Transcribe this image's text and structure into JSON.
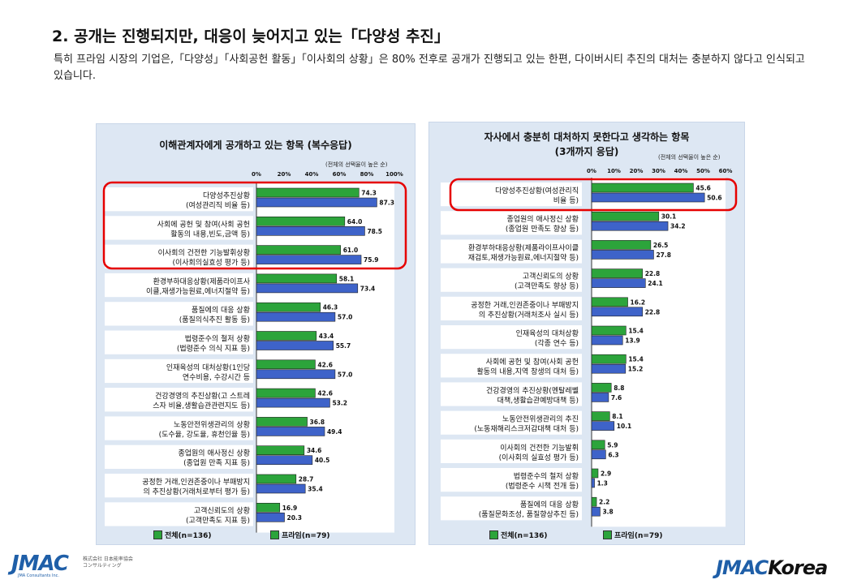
{
  "heading": "2. 공개는 진행되지만, 대응이 늦어지고 있는「다양성 추진」",
  "description": "특히 프라임 시장의 기업은,「다양성」「사회공헌 활동」「이사회의 상황」은 80% 전후로  공개가 진행되고 있는 한편, 다이버시티 추진의 대처는 충분하지 않다고 인식되고 있습니다.",
  "colors": {
    "all_bar": "#2ca43b",
    "prime_bar": "#3e63c9",
    "highlight": "#e60000",
    "panel_bg": "#dde7f3"
  },
  "legend": {
    "all_label": "전체(n=136)",
    "prime_label": "프라임(n=79)"
  },
  "logos": {
    "left_main": "JMAC",
    "left_sub_line1": "株式会社 日本能率協会",
    "left_sub_line2": "コンサルティング",
    "left_sub_en": "JMA Consultants Inc.",
    "right_a": "JMAC",
    "right_b": "Korea"
  },
  "chart_data": [
    {
      "type": "bar",
      "orientation": "horizontal",
      "title": "이해관계자에게 공개하고 있는 항목 (복수응답)",
      "note": "(전체의 선택율이 높은 순)",
      "xlim": [
        0,
        100
      ],
      "tick_labels": [
        "0%",
        "20%",
        "40%",
        "60%",
        "80%",
        "100%"
      ],
      "categories": [
        [
          "다양성추진상황",
          "(여성관리직 비율 등)"
        ],
        [
          "사회에 공헌 및 참여(사회 공헌",
          "활동의 내용,빈도,금액 등)"
        ],
        [
          "이사회의 건전한 기능발휘상황",
          "(이사회의실효성 평가 등)"
        ],
        [
          "환경부하대응상황(제품라이프사",
          "이클,재생가능원료,에너지절약 등)"
        ],
        [
          "품질에의 대응 상황",
          "(품질의식추진 활동 등)"
        ],
        [
          "법령준수의 철저 상황",
          "(법령준수 의식 지표 등)"
        ],
        [
          "인재육성의 대처상황(1인당",
          "연수비용, 수강시간 등"
        ],
        [
          "건강경영의 추진상황(고 스트레",
          "스자 비율,생활습관관련지도 등)"
        ],
        [
          "노동안전위생관리의 상황",
          "(도수율, 강도율, 휴천인율 등)"
        ],
        [
          "종업원의 애사정신 상황",
          "(종업원 만족 지표 등)"
        ],
        [
          "공정한 거래,인권존중이나 부패방지",
          "의 추진상황(거래처로부터 평가 등)"
        ],
        [
          "고객신뢰도의 상황",
          "(고객만족도 지표 등)"
        ]
      ],
      "series": [
        {
          "name": "전체(n=136)",
          "values": [
            74.3,
            64.0,
            61.0,
            58.1,
            46.3,
            43.4,
            42.6,
            42.6,
            36.8,
            34.6,
            28.7,
            16.9
          ]
        },
        {
          "name": "프라임(n=79)",
          "values": [
            87.3,
            78.5,
            75.9,
            73.4,
            57.0,
            55.7,
            57.0,
            53.2,
            49.4,
            40.5,
            35.4,
            20.3
          ]
        }
      ],
      "highlighted_rows": [
        0,
        1,
        2
      ]
    },
    {
      "type": "bar",
      "orientation": "horizontal",
      "title": "자사에서 충분히 대처하지 못한다고 생각하는 항목",
      "subtitle": "(3개까지 응답)",
      "note": "(전체의 선택율이 높은 순)",
      "xlim": [
        0,
        60
      ],
      "tick_labels": [
        "0%",
        "10%",
        "20%",
        "30%",
        "40%",
        "50%",
        "60%"
      ],
      "categories": [
        [
          "다양성추진상황(여성관리직",
          "비율 등)"
        ],
        [
          "종업원의 애사정신 상황",
          "(종업원 만족도 향상 등)"
        ],
        [
          "환경부하대응상황(제품라이프사이클",
          "재검토,재생가능원료,에너지절약 등)"
        ],
        [
          "고객신뢰도의 상황",
          "(고객만족도 향상 등)"
        ],
        [
          "공정한 거래,인권존중이나 부패방지",
          "의 추진상황(거래처조사 실시 등)"
        ],
        [
          "인재육성의 대처상황",
          "(각종 연수 등)"
        ],
        [
          "사회에 공헌 및 참여(사회 공헌",
          "활동의 내용,지역 창생의 대처 등)"
        ],
        [
          "건강경영의 추진상황(멘탈레벨",
          "대책,생활습관예방대책 등)"
        ],
        [
          "노동안전위생관리의 추진",
          "(노동재해리스크저감대책 대처 등)"
        ],
        [
          "이사회의 건전한 기능발휘",
          "(이사회의 실효성 평가 등)"
        ],
        [
          "법령준수의 철저 상황",
          "(법령준수 시책 전개 등)"
        ],
        [
          "품질에의 대응 상황",
          "(품질문화조성, 품질향상추진 등)"
        ]
      ],
      "series": [
        {
          "name": "전체(n=136)",
          "values": [
            45.6,
            30.1,
            26.5,
            22.8,
            16.2,
            15.4,
            15.4,
            8.8,
            8.1,
            5.9,
            2.9,
            2.2
          ]
        },
        {
          "name": "프라임(n=79)",
          "values": [
            50.6,
            34.2,
            27.8,
            24.1,
            22.8,
            13.9,
            15.2,
            7.6,
            10.1,
            6.3,
            1.3,
            3.8
          ]
        }
      ],
      "highlighted_rows": [
        0
      ]
    }
  ]
}
